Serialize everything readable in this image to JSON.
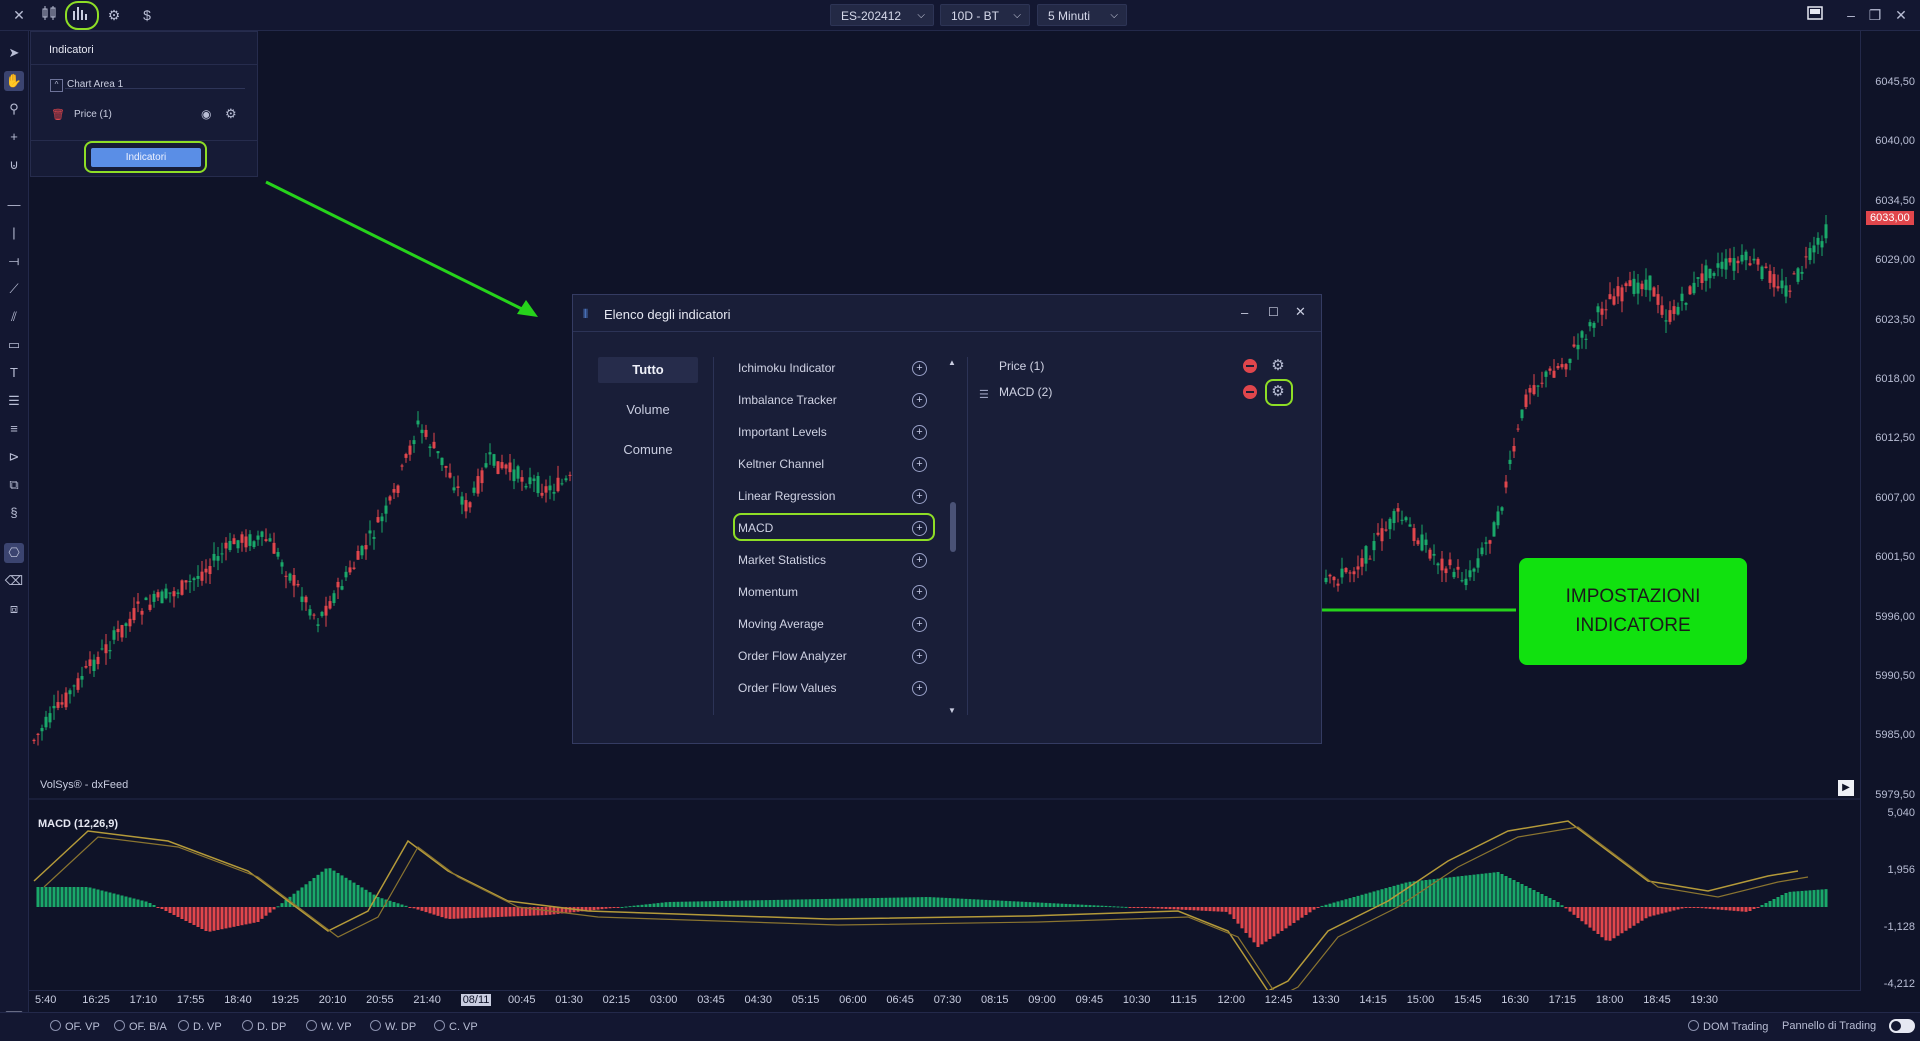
{
  "topbar": {
    "icons": [
      "close-icon",
      "candles-icon",
      "indicators-icon",
      "settings-icon",
      "dollar-icon"
    ],
    "dollar_glyph": "$",
    "symbol": "ES-202412",
    "range": "10D - BT",
    "timeframe": "5 Minuti"
  },
  "indicators_panel": {
    "title": "Indicatori",
    "chart_area": "Chart Area 1",
    "price_item": "Price (1)",
    "button_label": "Indicatori"
  },
  "chart": {
    "watermark": "VolSys® - dxFeed",
    "last_price": "6033,00",
    "price_ticks": [
      "6045,50",
      "6040,00",
      "6034,50",
      "6029,00",
      "6023,50",
      "6018,00",
      "6012,50",
      "6007,00",
      "6001,50",
      "5996,00",
      "5990,50",
      "5985,00",
      "5979,50"
    ],
    "macd_label": "MACD (12,26,9)",
    "macd_ticks": [
      "5,040",
      "1,956",
      "-1,128",
      "-4,212"
    ],
    "time_ticks": [
      "5:40",
      "16:25",
      "17:10",
      "17:55",
      "18:40",
      "19:25",
      "20:10",
      "20:55",
      "21:40",
      "08/11",
      "00:45",
      "01:30",
      "02:15",
      "03:00",
      "03:45",
      "04:30",
      "05:15",
      "06:00",
      "06:45",
      "07:30",
      "08:15",
      "09:00",
      "09:45",
      "10:30",
      "11:15",
      "12:00",
      "12:45",
      "13:30",
      "14:15",
      "15:00",
      "15:45",
      "16:30",
      "17:15",
      "18:00",
      "18:45",
      "19:30"
    ],
    "colors": {
      "up": "#1aa86a",
      "down": "#e0464c",
      "macd_line": "#b49a3a",
      "background": "#0f1328"
    }
  },
  "dialog": {
    "title": "Elenco degli indicatori",
    "categories": [
      "Tutto",
      "Volume",
      "Comune"
    ],
    "indicators": [
      "Ichimoku Indicator",
      "Imbalance Tracker",
      "Important Levels",
      "Keltner Channel",
      "Linear Regression",
      "MACD",
      "Market Statistics",
      "Momentum",
      "Moving Average",
      "Order Flow Analyzer",
      "Order Flow Values"
    ],
    "selected": [
      "Price (1)",
      "MACD (2)"
    ]
  },
  "callout": {
    "line1": "IMPOSTAZIONI",
    "line2": "INDICATORE"
  },
  "bottombar": {
    "options": [
      "OF. VP",
      "OF. B/A",
      "D. VP",
      "D. DP",
      "W. VP",
      "W. DP",
      "C. VP"
    ],
    "dom": "DOM Trading",
    "panel": "Pannello di Trading"
  }
}
